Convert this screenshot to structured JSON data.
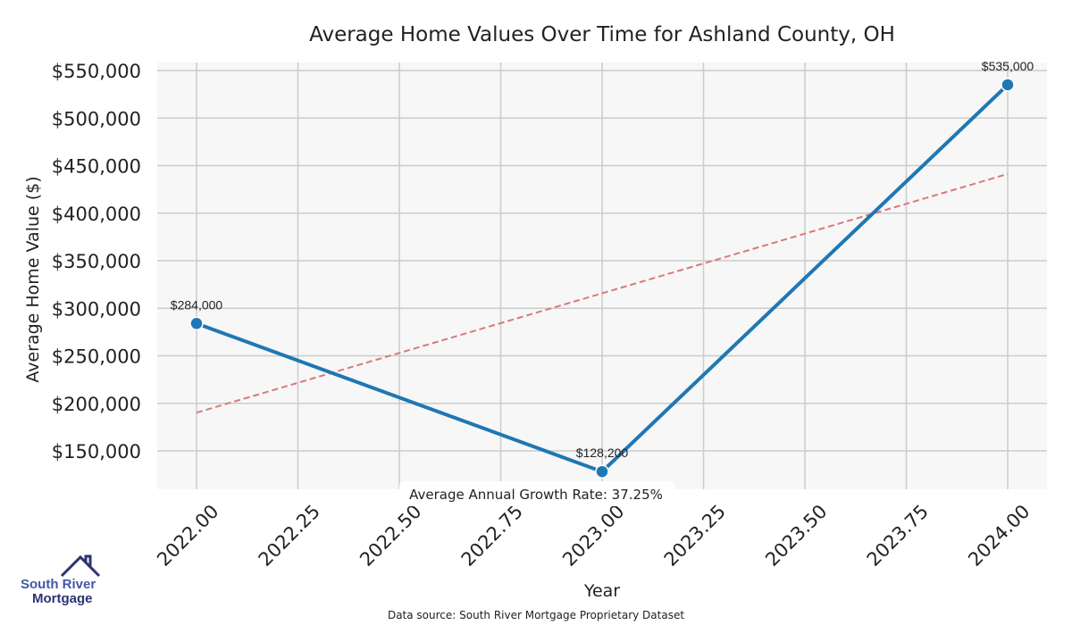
{
  "chart_data": {
    "type": "line",
    "title": "Average Home Values Over Time for Ashland County, OH",
    "xlabel": "Year",
    "ylabel": "Average Home Value ($)",
    "x": [
      2022,
      2023,
      2024
    ],
    "series": [
      {
        "name": "Average Home Value",
        "values": [
          284000,
          128200,
          535000
        ],
        "color": "#1f77b4",
        "data_labels": [
          "$284,000",
          "$128,200",
          "$535,000"
        ]
      },
      {
        "name": "Trend",
        "style": "dashed",
        "color": "#d9787a",
        "x": [
          2022,
          2024
        ],
        "values": [
          190233,
          441233
        ]
      }
    ],
    "xlim": [
      2021.9,
      2024.1
    ],
    "ylim": [
      108000,
      558000
    ],
    "xticks": [
      2022.0,
      2022.25,
      2022.5,
      2022.75,
      2023.0,
      2023.25,
      2023.5,
      2023.75,
      2024.0
    ],
    "xtick_labels": [
      "2022.00",
      "2022.25",
      "2022.50",
      "2022.75",
      "2023.00",
      "2023.25",
      "2023.50",
      "2023.75",
      "2024.00"
    ],
    "yticks": [
      150000,
      200000,
      250000,
      300000,
      350000,
      400000,
      450000,
      500000,
      550000
    ],
    "ytick_labels": [
      "$150,000",
      "$200,000",
      "$250,000",
      "$300,000",
      "$350,000",
      "$400,000",
      "$450,000",
      "$500,000",
      "$550,000"
    ],
    "grid": true,
    "annotation": "Average Annual Growth Rate: 37.25%"
  },
  "footer": {
    "source": "Data source: South River Mortgage Proprietary Dataset"
  },
  "logo": {
    "line1": "South River",
    "line2": "Mortgage"
  }
}
